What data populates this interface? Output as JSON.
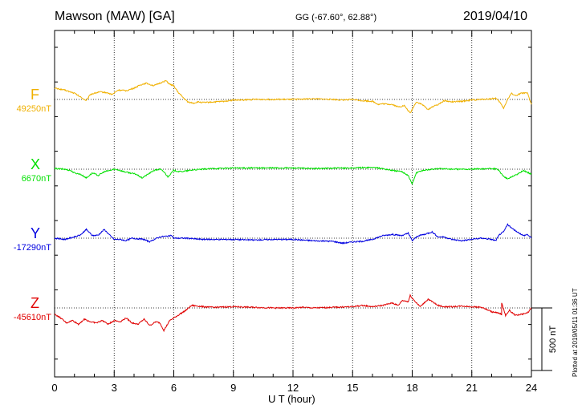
{
  "header": {
    "station": "Mawson (MAW)  [GA]",
    "coords": "GG (-67.60°,  62.88°)",
    "date": "2019/04/10"
  },
  "footer": {
    "plotted": "Plotted at 2019/05/11 01:36 UT"
  },
  "colors": {
    "F": "#f0b000",
    "X": "#00e000",
    "Y": "#0000e0",
    "Z": "#e00000"
  },
  "chart_data": {
    "type": "line",
    "xlabel": "U T (hour)",
    "xlim": [
      0,
      24
    ],
    "xticks": [
      "0",
      "3",
      "6",
      "9",
      "12",
      "15",
      "18",
      "21",
      "24"
    ],
    "scale_bar": {
      "label": "500 nT",
      "value_nT": 500
    },
    "series": [
      {
        "name": "F",
        "baseline_label": "49250nT",
        "baseline_nT": 49250,
        "color": "#f0b000",
        "points": [
          [
            0,
            90
          ],
          [
            0.5,
            75
          ],
          [
            1,
            50
          ],
          [
            1.3,
            20
          ],
          [
            1.6,
            -10
          ],
          [
            1.8,
            40
          ],
          [
            2,
            50
          ],
          [
            2.3,
            60
          ],
          [
            2.6,
            55
          ],
          [
            2.9,
            40
          ],
          [
            3.2,
            75
          ],
          [
            3.6,
            70
          ],
          [
            4,
            90
          ],
          [
            4.3,
            115
          ],
          [
            4.6,
            130
          ],
          [
            5,
            110
          ],
          [
            5.3,
            130
          ],
          [
            5.6,
            150
          ],
          [
            5.8,
            120
          ],
          [
            6,
            110
          ],
          [
            6.2,
            60
          ],
          [
            6.5,
            10
          ],
          [
            6.7,
            -20
          ],
          [
            7,
            -30
          ],
          [
            7.2,
            -20
          ],
          [
            7.5,
            -25
          ],
          [
            8,
            -20
          ],
          [
            8.5,
            -15
          ],
          [
            9,
            -5
          ],
          [
            9.5,
            -5
          ],
          [
            10,
            0
          ],
          [
            11,
            0
          ],
          [
            12,
            0
          ],
          [
            12.5,
            3
          ],
          [
            13,
            5
          ],
          [
            14,
            0
          ],
          [
            14.5,
            -5
          ],
          [
            15,
            0
          ],
          [
            15.5,
            -10
          ],
          [
            16,
            -15
          ],
          [
            16.3,
            -40
          ],
          [
            16.5,
            -35
          ],
          [
            17,
            -40
          ],
          [
            17.3,
            -60
          ],
          [
            17.6,
            -50
          ],
          [
            17.9,
            -110
          ],
          [
            18.2,
            -20
          ],
          [
            18.5,
            -40
          ],
          [
            18.8,
            -80
          ],
          [
            19,
            -60
          ],
          [
            19.3,
            -40
          ],
          [
            19.6,
            -10
          ],
          [
            20,
            -20
          ],
          [
            20.5,
            -15
          ],
          [
            21,
            -5
          ],
          [
            21.5,
            0
          ],
          [
            22,
            5
          ],
          [
            22.2,
            10
          ],
          [
            22.4,
            -20
          ],
          [
            22.6,
            -70
          ],
          [
            22.8,
            0
          ],
          [
            23,
            50
          ],
          [
            23.2,
            30
          ],
          [
            23.5,
            50
          ],
          [
            23.8,
            50
          ],
          [
            24,
            -40
          ]
        ]
      },
      {
        "name": "X",
        "baseline_label": "6670nT",
        "baseline_nT": 6670,
        "color": "#00e000",
        "points": [
          [
            0,
            5
          ],
          [
            0.5,
            0
          ],
          [
            0.8,
            -10
          ],
          [
            1,
            -30
          ],
          [
            1.3,
            -40
          ],
          [
            1.6,
            -70
          ],
          [
            1.9,
            -30
          ],
          [
            2.2,
            -50
          ],
          [
            2.5,
            -20
          ],
          [
            2.8,
            -10
          ],
          [
            3,
            0
          ],
          [
            3.2,
            -5
          ],
          [
            3.5,
            -20
          ],
          [
            3.8,
            -30
          ],
          [
            4.1,
            -40
          ],
          [
            4.4,
            -70
          ],
          [
            4.7,
            -40
          ],
          [
            5,
            -10
          ],
          [
            5.3,
            0
          ],
          [
            5.5,
            -20
          ],
          [
            5.7,
            -60
          ],
          [
            6,
            -10
          ],
          [
            6.3,
            -20
          ],
          [
            6.6,
            -15
          ],
          [
            7,
            -5
          ],
          [
            7.5,
            0
          ],
          [
            8,
            5
          ],
          [
            9,
            10
          ],
          [
            10,
            10
          ],
          [
            11,
            10
          ],
          [
            12,
            10
          ],
          [
            13,
            5
          ],
          [
            14,
            8
          ],
          [
            15,
            10
          ],
          [
            16,
            15
          ],
          [
            16.5,
            5
          ],
          [
            17,
            -10
          ],
          [
            17.5,
            -20
          ],
          [
            17.8,
            -50
          ],
          [
            18,
            -120
          ],
          [
            18.2,
            -30
          ],
          [
            18.5,
            -10
          ],
          [
            19,
            0
          ],
          [
            19.5,
            5
          ],
          [
            20,
            0
          ],
          [
            21,
            0
          ],
          [
            22,
            5
          ],
          [
            22.3,
            0
          ],
          [
            22.5,
            -40
          ],
          [
            22.8,
            -80
          ],
          [
            23,
            -60
          ],
          [
            23.3,
            -40
          ],
          [
            23.6,
            -10
          ],
          [
            24,
            -40
          ]
        ]
      },
      {
        "name": "Y",
        "baseline_label": "-17290nT",
        "baseline_nT": -17290,
        "color": "#0000e0",
        "points": [
          [
            0,
            0
          ],
          [
            0.5,
            -10
          ],
          [
            1,
            10
          ],
          [
            1.3,
            25
          ],
          [
            1.6,
            70
          ],
          [
            1.9,
            20
          ],
          [
            2.2,
            25
          ],
          [
            2.5,
            70
          ],
          [
            2.8,
            20
          ],
          [
            3,
            -10
          ],
          [
            3.3,
            -10
          ],
          [
            3.6,
            -20
          ],
          [
            3.9,
            0
          ],
          [
            4.2,
            -5
          ],
          [
            4.5,
            -10
          ],
          [
            4.8,
            -30
          ],
          [
            5,
            -10
          ],
          [
            5.3,
            10
          ],
          [
            5.6,
            15
          ],
          [
            5.9,
            20
          ],
          [
            6,
            0
          ],
          [
            6.3,
            0
          ],
          [
            6.6,
            0
          ],
          [
            7,
            -5
          ],
          [
            7.5,
            -10
          ],
          [
            8,
            -10
          ],
          [
            9,
            -10
          ],
          [
            10,
            -15
          ],
          [
            11,
            -10
          ],
          [
            12,
            -10
          ],
          [
            13,
            -20
          ],
          [
            14,
            -25
          ],
          [
            14.5,
            -40
          ],
          [
            15,
            -30
          ],
          [
            15.5,
            -25
          ],
          [
            16,
            -10
          ],
          [
            16.5,
            20
          ],
          [
            17,
            30
          ],
          [
            17.5,
            20
          ],
          [
            17.8,
            40
          ],
          [
            18,
            -20
          ],
          [
            18.3,
            20
          ],
          [
            18.6,
            30
          ],
          [
            19,
            50
          ],
          [
            19.3,
            10
          ],
          [
            19.6,
            10
          ],
          [
            20,
            -10
          ],
          [
            20.5,
            -20
          ],
          [
            21,
            -10
          ],
          [
            21.5,
            0
          ],
          [
            22,
            -10
          ],
          [
            22.2,
            -20
          ],
          [
            22.4,
            30
          ],
          [
            22.6,
            50
          ],
          [
            22.8,
            110
          ],
          [
            23,
            80
          ],
          [
            23.3,
            50
          ],
          [
            23.6,
            20
          ],
          [
            23.8,
            30
          ],
          [
            24,
            0
          ]
        ]
      },
      {
        "name": "Z",
        "baseline_label": "-45610nT",
        "baseline_nT": -45610,
        "color": "#e00000",
        "points": [
          [
            0,
            -50
          ],
          [
            0.3,
            -80
          ],
          [
            0.6,
            -120
          ],
          [
            0.9,
            -100
          ],
          [
            1.2,
            -130
          ],
          [
            1.5,
            -90
          ],
          [
            1.8,
            -110
          ],
          [
            2.1,
            -120
          ],
          [
            2.4,
            -100
          ],
          [
            2.7,
            -130
          ],
          [
            3,
            -100
          ],
          [
            3.3,
            -110
          ],
          [
            3.6,
            -80
          ],
          [
            3.9,
            -120
          ],
          [
            4.2,
            -130
          ],
          [
            4.5,
            -90
          ],
          [
            4.8,
            -140
          ],
          [
            5.1,
            -110
          ],
          [
            5.3,
            -120
          ],
          [
            5.5,
            -180
          ],
          [
            5.8,
            -100
          ],
          [
            6,
            -80
          ],
          [
            6.3,
            -50
          ],
          [
            6.6,
            -20
          ],
          [
            6.9,
            20
          ],
          [
            7.2,
            15
          ],
          [
            7.5,
            10
          ],
          [
            8,
            5
          ],
          [
            9,
            10
          ],
          [
            10,
            5
          ],
          [
            11,
            0
          ],
          [
            12,
            0
          ],
          [
            12.5,
            5
          ],
          [
            13,
            0
          ],
          [
            14,
            5
          ],
          [
            15,
            10
          ],
          [
            15.5,
            20
          ],
          [
            16,
            10
          ],
          [
            16.5,
            20
          ],
          [
            17,
            40
          ],
          [
            17.3,
            20
          ],
          [
            17.5,
            60
          ],
          [
            17.8,
            50
          ],
          [
            17.9,
            100
          ],
          [
            18.1,
            60
          ],
          [
            18.4,
            10
          ],
          [
            18.8,
            70
          ],
          [
            19,
            50
          ],
          [
            19.3,
            20
          ],
          [
            19.6,
            10
          ],
          [
            20,
            10
          ],
          [
            20.5,
            15
          ],
          [
            21,
            10
          ],
          [
            21.5,
            5
          ],
          [
            22,
            -30
          ],
          [
            22.3,
            -40
          ],
          [
            22.5,
            -50
          ],
          [
            22.5,
            40
          ],
          [
            22.7,
            -60
          ],
          [
            22.9,
            -20
          ],
          [
            23.2,
            -60
          ],
          [
            23.5,
            -50
          ],
          [
            23.8,
            -40
          ],
          [
            24,
            0
          ]
        ]
      }
    ]
  }
}
